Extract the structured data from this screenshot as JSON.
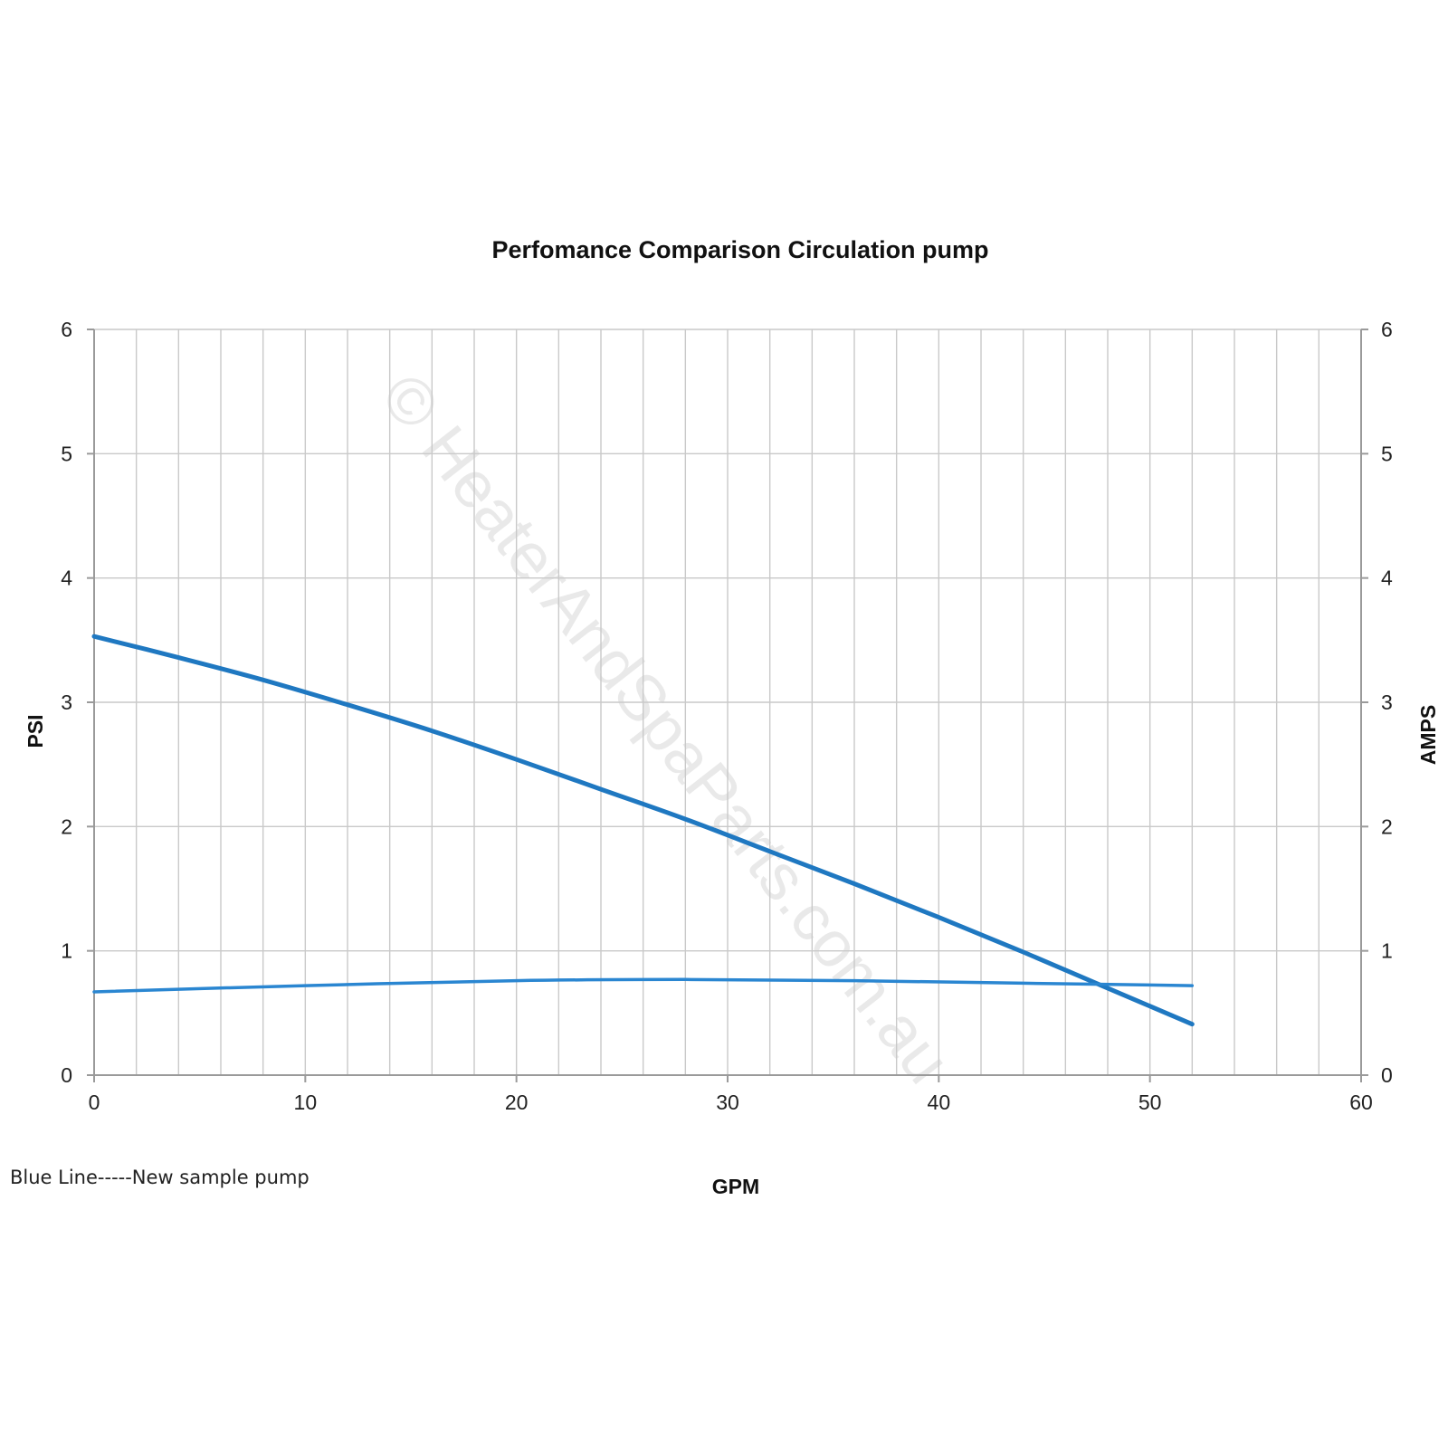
{
  "chart_data": {
    "type": "line",
    "title": "Perfomance Comparison Circulation pump",
    "xlabel": "GPM",
    "ylabel": "PSI",
    "y2label": "AMPS",
    "xlim": [
      0,
      60
    ],
    "ylim": [
      0,
      6
    ],
    "y2lim": [
      0,
      6
    ],
    "xticks": [
      0,
      10,
      20,
      30,
      40,
      50,
      60
    ],
    "yticks": [
      0,
      1,
      2,
      3,
      4,
      5,
      6
    ],
    "y2ticks": [
      0,
      1,
      2,
      3,
      4,
      5,
      6
    ],
    "grid": true,
    "series": [
      {
        "axis": "left",
        "color": "#1f78c1",
        "x": [
          0,
          4,
          8,
          12,
          16,
          20,
          24,
          28,
          32,
          36,
          40,
          44,
          48,
          52
        ],
        "y": [
          3.53,
          3.36,
          3.18,
          2.98,
          2.77,
          2.54,
          2.3,
          2.06,
          1.8,
          1.54,
          1.27,
          0.99,
          0.7,
          0.41
        ]
      },
      {
        "axis": "right",
        "color": "#2a86d1",
        "x": [
          0,
          10,
          20,
          28,
          36,
          44,
          52
        ],
        "y": [
          0.67,
          0.72,
          0.76,
          0.77,
          0.76,
          0.74,
          0.72
        ]
      }
    ],
    "note": "Blue Line-----New sample pump",
    "watermark": "© HeaterAndSpaParts.com.au"
  }
}
